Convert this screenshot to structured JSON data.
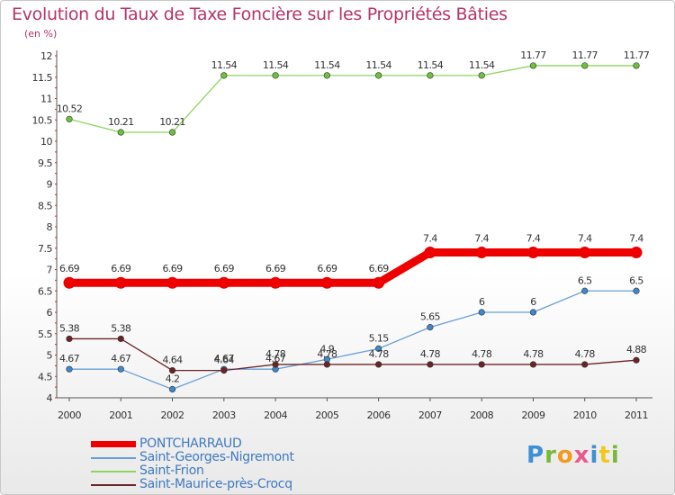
{
  "chart_data": {
    "type": "line",
    "title": "Evolution du Taux de Taxe Foncière sur les Propriétés Bâties",
    "ylabel": "(en %)",
    "xlabel": "",
    "ylim": [
      4,
      12
    ],
    "yticks": [
      4,
      4.5,
      5,
      5.5,
      6,
      6.5,
      7,
      7.5,
      8,
      8.5,
      9,
      9.5,
      10,
      10.5,
      11,
      11.5,
      12
    ],
    "ytick_labels": [
      "4",
      "4.5",
      "5",
      "5.5",
      "6",
      "6.5",
      "7",
      "7.5",
      "8",
      "8.5",
      "9",
      "9.5",
      "10",
      "10.5",
      "11",
      "11.5",
      "12"
    ],
    "categories": [
      "2000",
      "2001",
      "2002",
      "2003",
      "2004",
      "2005",
      "2006",
      "2007",
      "2008",
      "2009",
      "2010",
      "2011"
    ],
    "grid": false,
    "series": [
      {
        "name": "PONTCHARRAUD",
        "color": "#ee0000",
        "width": "thick",
        "values": [
          6.69,
          6.69,
          6.69,
          6.69,
          6.69,
          6.69,
          6.69,
          7.4,
          7.4,
          7.4,
          7.4,
          7.4
        ],
        "labels": [
          "6.69",
          "6.69",
          "6.69",
          "6.69",
          "6.69",
          "6.69",
          "6.69",
          "7.4",
          "7.4",
          "7.4",
          "7.4",
          "7.4"
        ]
      },
      {
        "name": "Saint-Georges-Nigremont",
        "color": "#6a9fd4",
        "marker_color": "#3d87cc",
        "width": "thin",
        "values": [
          4.67,
          4.67,
          4.2,
          4.67,
          4.67,
          4.9,
          5.15,
          5.65,
          6,
          6,
          6.5,
          6.5
        ],
        "labels": [
          "4.67",
          "4.67",
          "4.2",
          "4.67",
          "4.67",
          "4.9",
          "5.15",
          "5.65",
          "6",
          "6",
          "6.5",
          "6.5"
        ]
      },
      {
        "name": "Saint-Frion",
        "color": "#8fd460",
        "marker_color": "#6cc23a",
        "width": "thin",
        "values": [
          10.52,
          10.21,
          10.21,
          11.54,
          11.54,
          11.54,
          11.54,
          11.54,
          11.54,
          11.77,
          11.77,
          11.77
        ],
        "labels": [
          "10.52",
          "10.21",
          "10.21",
          "11.54",
          "11.54",
          "11.54",
          "11.54",
          "11.54",
          "11.54",
          "11.77",
          "11.77",
          "11.77"
        ]
      },
      {
        "name": "Saint-Maurice-près-Crocq",
        "color": "#6b2426",
        "marker_color": "#6b2426",
        "width": "thin",
        "values": [
          5.38,
          5.38,
          4.64,
          4.64,
          4.78,
          4.78,
          4.78,
          4.78,
          4.78,
          4.78,
          4.78,
          4.88
        ],
        "labels": [
          "5.38",
          "5.38",
          "4.64",
          "4.64",
          "4.78",
          "4.78",
          "4.78",
          "4.78",
          "4.78",
          "4.78",
          "4.78",
          "4.88"
        ]
      }
    ],
    "legend_position": "bottom-left"
  },
  "branding": {
    "logo_text": "Proxiti"
  }
}
